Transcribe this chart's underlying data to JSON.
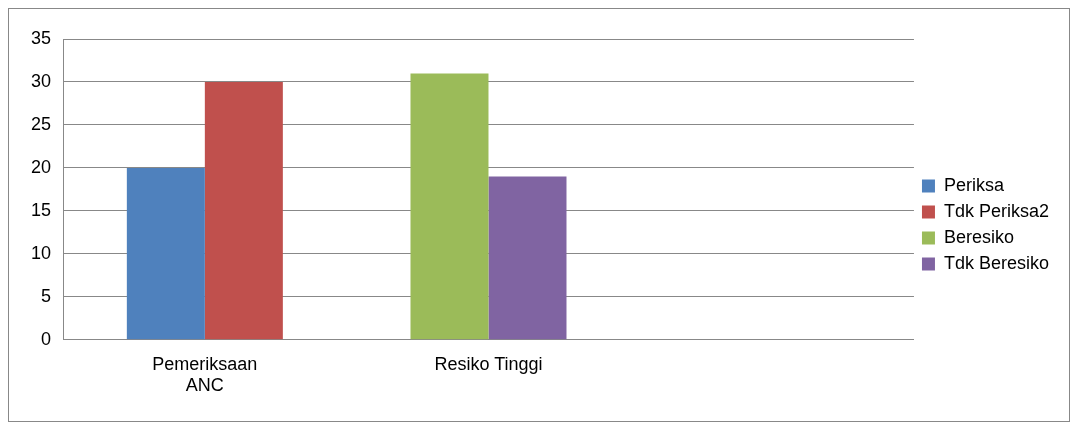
{
  "chart_data": {
    "type": "bar",
    "categories": [
      "Pemeriksaan ANC",
      "Resiko Tinggi",
      null
    ],
    "series": [
      {
        "name": "Periksa",
        "color": "#4f81bd",
        "values": [
          20,
          null,
          null
        ]
      },
      {
        "name": "Tdk Periksa2",
        "color": "#c0504d",
        "values": [
          30,
          null,
          null
        ]
      },
      {
        "name": "Beresiko",
        "color": "#9bbb59",
        "values": [
          null,
          31,
          null
        ]
      },
      {
        "name": "Tdk Beresiko",
        "color": "#8064a2",
        "values": [
          null,
          19,
          null
        ]
      }
    ],
    "ylim": [
      0,
      35
    ],
    "yticks": [
      0,
      5,
      10,
      15,
      20,
      25,
      30,
      35
    ],
    "grid": "y",
    "legend": "right"
  }
}
